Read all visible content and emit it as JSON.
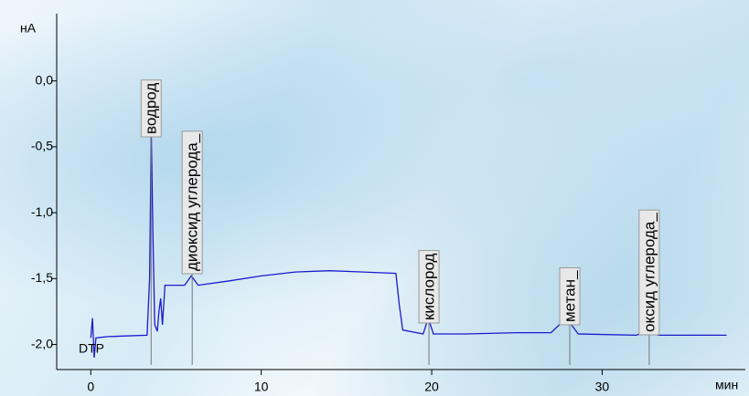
{
  "chart_data": {
    "type": "line",
    "y_label": "нА",
    "x_label": "мин",
    "marker_label": "DTP",
    "color": "#1a1acc",
    "xlim": [
      -2,
      38.4
    ],
    "ylim": [
      -2.19,
      0.51
    ],
    "xticks": [
      0,
      10,
      20,
      30
    ],
    "yticks": [
      {
        "value": 0,
        "label": "0,0"
      },
      {
        "value": -0.5,
        "label": "-0,5"
      },
      {
        "value": -1,
        "label": "-1,0"
      },
      {
        "value": -1.5,
        "label": "-1,5"
      },
      {
        "value": -2,
        "label": "-2,0"
      }
    ],
    "x": [
      0,
      0.1,
      0.2,
      0.3,
      1,
      3.3,
      3.45,
      3.55,
      3.65,
      3.75,
      3.9,
      4.0,
      4.1,
      4.2,
      4.35,
      5.5,
      5.9,
      6.3,
      8,
      10,
      12,
      14,
      16,
      17.9,
      18.1,
      18.3,
      19.5,
      19.8,
      20.1,
      22,
      25,
      27,
      27.9,
      28.6,
      32,
      32.6,
      33.3,
      37.3
    ],
    "values": [
      -1.95,
      -1.8,
      -2.1,
      -1.95,
      -1.94,
      -1.93,
      -1.5,
      -0.38,
      -1.2,
      -1.85,
      -1.9,
      -1.75,
      -1.65,
      -1.85,
      -1.55,
      -1.55,
      -1.48,
      -1.55,
      -1.52,
      -1.48,
      -1.45,
      -1.44,
      -1.45,
      -1.46,
      -1.7,
      -1.89,
      -1.92,
      -1.8,
      -1.92,
      -1.92,
      -1.91,
      -1.91,
      -1.8,
      -1.92,
      -1.93,
      -1.9,
      -1.93,
      -1.93
    ],
    "annotations": [
      {
        "text": "водрод",
        "x": 3.54
      },
      {
        "text": "диоксид углерода_",
        "x": 5.95
      },
      {
        "text": "кислород",
        "x": 19.84
      },
      {
        "text": "метан_",
        "x": 28.1
      },
      {
        "text": "оксид углерода_",
        "x": 32.76
      }
    ]
  }
}
